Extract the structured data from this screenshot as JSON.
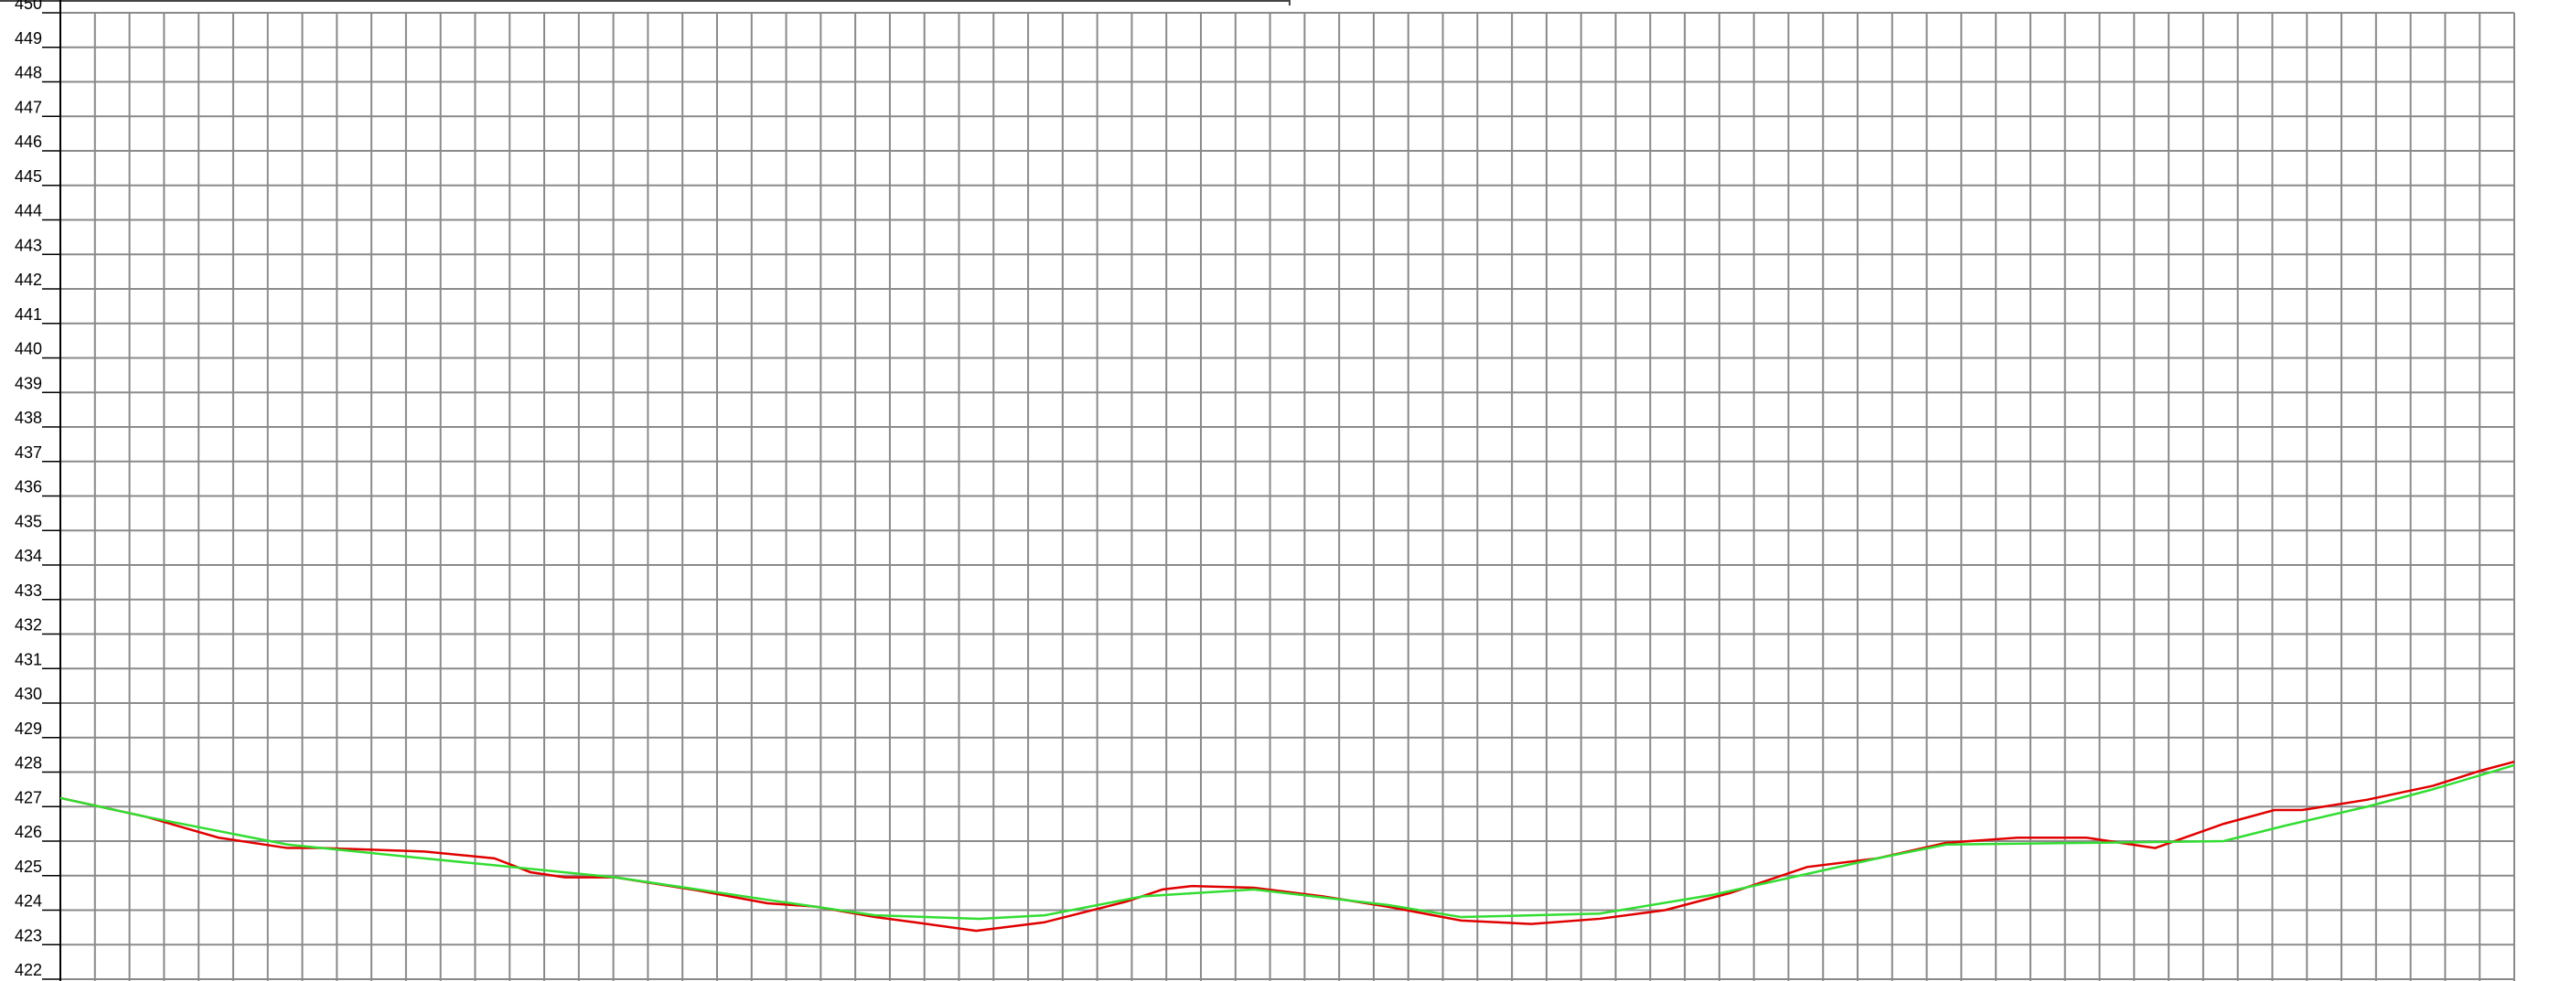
{
  "chart_data": {
    "type": "line",
    "xlim": [
      0,
      71
    ],
    "xticks": [
      0,
      1,
      2,
      3,
      4,
      5,
      6,
      7,
      8,
      9,
      10,
      11,
      12,
      13,
      14,
      15,
      16,
      17,
      18,
      19,
      20,
      21,
      22,
      23,
      24,
      25,
      26,
      27,
      28,
      29,
      30,
      31,
      32,
      33,
      34,
      35,
      36,
      37,
      38,
      39,
      40,
      41,
      42,
      43,
      44,
      45,
      46,
      47,
      48,
      49,
      50,
      51,
      52,
      53,
      54,
      55,
      56,
      57,
      58,
      59,
      60,
      61,
      62,
      63,
      64,
      65,
      66,
      67,
      68,
      69,
      70,
      71
    ],
    "ylim": [
      422,
      450
    ],
    "yticks": [
      422,
      423,
      424,
      425,
      426,
      427,
      428,
      429,
      430,
      431,
      432,
      433,
      434,
      435,
      436,
      437,
      438,
      439,
      440,
      441,
      442,
      443,
      444,
      445,
      446,
      447,
      448,
      449,
      450
    ],
    "grid": true,
    "series": [
      {
        "color": "#e00000",
        "x": [
          0,
          2.5,
          3.54,
          4.58,
          6.57,
          7.56,
          10.53,
          12.56,
          13.6,
          14.6,
          16.06,
          18.56,
          20.46,
          21.87,
          23.57,
          24.71,
          26.5,
          28.48,
          30.85,
          31.89,
          32.74,
          34.53,
          36.52,
          38.41,
          40.53,
          42.56,
          44.54,
          46.43,
          48.32,
          50.54,
          52.57,
          54.56,
          56.64,
          58.62,
          60.61,
          62.59,
          64.06,
          64.86,
          66.75,
          68.64,
          70.06,
          71
        ],
        "values": [
          427.25,
          426.7,
          426.4,
          426.1,
          425.8,
          425.8,
          425.7,
          425.5,
          425.1,
          424.95,
          424.95,
          424.55,
          424.2,
          424.1,
          423.8,
          423.65,
          423.4,
          423.65,
          424.25,
          424.6,
          424.7,
          424.65,
          424.4,
          424.1,
          423.7,
          423.6,
          423.75,
          424.0,
          424.5,
          425.25,
          425.5,
          425.95,
          426.1,
          426.1,
          425.8,
          426.5,
          426.9,
          426.9,
          427.2,
          427.6,
          428.05,
          428.3
        ]
      },
      {
        "color": "#33dd33",
        "x": [
          0,
          2.5,
          6.57,
          10.53,
          12.56,
          16.06,
          20.46,
          23.57,
          26.59,
          28.48,
          31.32,
          34.53,
          38.41,
          40.53,
          44.54,
          47.85,
          50.54,
          52.57,
          54.56,
          58.62,
          62.59,
          64.38,
          66.75,
          68.64,
          71
        ],
        "values": [
          427.25,
          426.7,
          425.9,
          425.5,
          425.3,
          424.95,
          424.3,
          423.85,
          423.75,
          423.85,
          424.4,
          424.6,
          424.15,
          423.8,
          423.9,
          424.45,
          425.05,
          425.5,
          425.9,
          425.95,
          426.0,
          426.45,
          427.0,
          427.5,
          428.2
        ]
      }
    ]
  }
}
